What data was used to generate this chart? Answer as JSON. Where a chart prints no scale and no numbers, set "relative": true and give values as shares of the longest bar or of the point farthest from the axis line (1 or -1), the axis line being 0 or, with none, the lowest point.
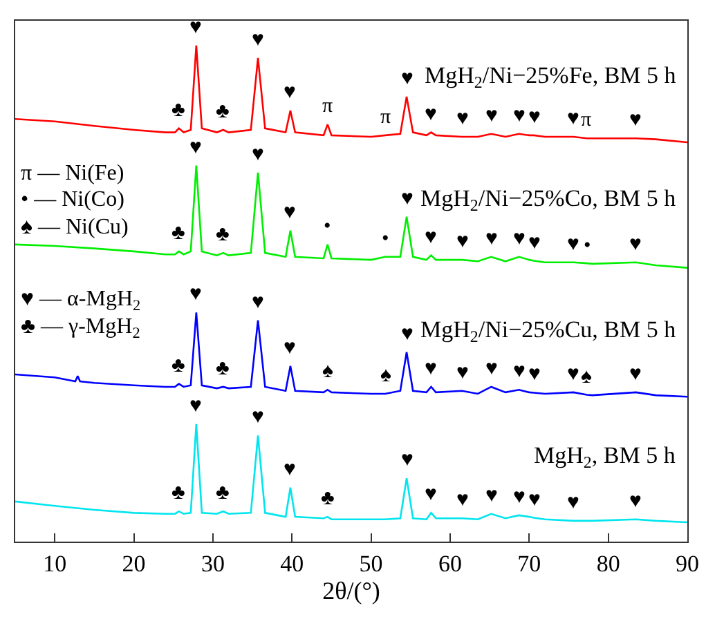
{
  "chart_data": {
    "type": "line",
    "relative": true,
    "xlabel": "2θ/(°)",
    "xlim": [
      5,
      90
    ],
    "xticks": [
      10,
      20,
      30,
      40,
      50,
      60,
      70,
      80,
      90
    ],
    "legend": false,
    "marker": "none",
    "line_style": "solid",
    "x": [
      5,
      10,
      15,
      20,
      24,
      25.2,
      25.7,
      26.3,
      27.2,
      27.9,
      28.6,
      30.5,
      31.3,
      32,
      34.8,
      35.7,
      36.6,
      39.2,
      39.8,
      40.4,
      44,
      44.5,
      45,
      50,
      51.8,
      53.7,
      54.5,
      55.3,
      57,
      57.6,
      58.2,
      61.5,
      63.5,
      65.2,
      67,
      68.7,
      70,
      70.6,
      72,
      75.6,
      77.3,
      78,
      83.5,
      86,
      90
    ],
    "series": [
      {
        "name": "MgH$_{2}$/Ni−25%Fe, BM 5 h",
        "color": "#ff0000",
        "values": [
          0.852,
          0.847,
          0.838,
          0.83,
          0.825,
          0.825,
          0.833,
          0.825,
          0.83,
          1.0,
          0.833,
          0.825,
          0.83,
          0.825,
          0.83,
          0.975,
          0.833,
          0.825,
          0.869,
          0.825,
          0.819,
          0.841,
          0.819,
          0.816,
          0.819,
          0.822,
          0.897,
          0.825,
          0.819,
          0.825,
          0.819,
          0.816,
          0.816,
          0.822,
          0.816,
          0.822,
          0.819,
          0.819,
          0.816,
          0.816,
          0.813,
          0.813,
          0.813,
          0.811,
          0.805
        ]
      },
      {
        "name": "MgH$_{2}$/Ni−25%Co, BM 5 h",
        "color": "#00ee00",
        "values": [
          0.599,
          0.596,
          0.591,
          0.585,
          0.579,
          0.579,
          0.585,
          0.579,
          0.585,
          0.758,
          0.585,
          0.577,
          0.582,
          0.577,
          0.582,
          0.744,
          0.582,
          0.574,
          0.627,
          0.574,
          0.571,
          0.599,
          0.571,
          0.568,
          0.574,
          0.574,
          0.655,
          0.574,
          0.568,
          0.577,
          0.568,
          0.568,
          0.565,
          0.574,
          0.565,
          0.574,
          0.568,
          0.566,
          0.563,
          0.563,
          0.561,
          0.56,
          0.563,
          0.557,
          0.552
        ]
      },
      {
        "name": "MgH$_{2}$/Ni−25%Cu, BM 5 h",
        "color": "#0000ff",
        "x": [
          5,
          10,
          12.6,
          12.9,
          13.2,
          15,
          20,
          24,
          25.2,
          25.7,
          26.3,
          27.2,
          27.9,
          28.6,
          30.5,
          31.3,
          32,
          34.8,
          35.7,
          36.6,
          39.2,
          39.8,
          40.4,
          44,
          44.5,
          45,
          50,
          51.8,
          53.7,
          54.5,
          55.3,
          57,
          57.6,
          58.2,
          61.5,
          63.5,
          65.2,
          67,
          68.7,
          70,
          70.6,
          72,
          75.6,
          77.3,
          78,
          83.5,
          86,
          90
        ],
        "values": [
          0.337,
          0.331,
          0.323,
          0.334,
          0.323,
          0.32,
          0.315,
          0.312,
          0.312,
          0.318,
          0.312,
          0.315,
          0.462,
          0.315,
          0.309,
          0.312,
          0.309,
          0.312,
          0.446,
          0.312,
          0.304,
          0.354,
          0.304,
          0.301,
          0.306,
          0.301,
          0.298,
          0.298,
          0.304,
          0.382,
          0.304,
          0.301,
          0.312,
          0.301,
          0.304,
          0.298,
          0.312,
          0.301,
          0.306,
          0.301,
          0.3,
          0.298,
          0.301,
          0.296,
          0.295,
          0.301,
          0.295,
          0.292
        ]
      },
      {
        "name": "MgH$_{2}$, BM 5 h",
        "color": "#00e5ee",
        "values": [
          0.081,
          0.072,
          0.064,
          0.058,
          0.056,
          0.056,
          0.061,
          0.056,
          0.058,
          0.237,
          0.058,
          0.056,
          0.061,
          0.056,
          0.058,
          0.214,
          0.058,
          0.05,
          0.109,
          0.05,
          0.047,
          0.05,
          0.045,
          0.045,
          0.045,
          0.047,
          0.128,
          0.047,
          0.045,
          0.058,
          0.047,
          0.047,
          0.045,
          0.056,
          0.047,
          0.053,
          0.05,
          0.048,
          0.045,
          0.042,
          0.042,
          0.042,
          0.045,
          0.042,
          0.039
        ]
      }
    ],
    "annotations": [
      "π — Ni(Fe)",
      "• — Ni(Co)",
      "♠ — Ni(Cu)",
      "♥ — α-MgH$_{2}$",
      "♣ — γ-MgH$_{2}$",
      {
        "text": "♣",
        "x": 25.7,
        "y": 0.833
      },
      {
        "text": "♥",
        "x": 27.9,
        "y": 1.0
      },
      {
        "text": "♣",
        "x": 31.3,
        "y": 0.83
      },
      {
        "text": "♥",
        "x": 35.7,
        "y": 0.975
      },
      {
        "text": "♥",
        "x": 39.8,
        "y": 0.869
      },
      {
        "text": "π",
        "x": 44.5,
        "y": 0.841
      },
      {
        "text": "π",
        "x": 51.8,
        "y": 0.819
      },
      {
        "text": "♥",
        "x": 54.5,
        "y": 0.897
      },
      {
        "text": "♥",
        "x": 57.6,
        "y": 0.825
      },
      {
        "text": "♥",
        "x": 61.5,
        "y": 0.816
      },
      {
        "text": "♥",
        "x": 65.2,
        "y": 0.822
      },
      {
        "text": "♥",
        "x": 68.7,
        "y": 0.822
      },
      {
        "text": "♥",
        "x": 70.6,
        "y": 0.819
      },
      {
        "text": "♥",
        "x": 75.6,
        "y": 0.816
      },
      {
        "text": "π",
        "x": 77.3,
        "y": 0.813
      },
      {
        "text": "♥",
        "x": 83.5,
        "y": 0.813
      },
      {
        "text": "♥",
        "x": 27.9,
        "y": 0.758
      },
      {
        "text": "♥",
        "x": 35.7,
        "y": 0.744
      },
      {
        "text": "♣",
        "x": 25.7,
        "y": 0.585
      },
      {
        "text": "♣",
        "x": 31.3,
        "y": 0.582
      },
      {
        "text": "♥",
        "x": 39.8,
        "y": 0.627
      },
      {
        "text": "•",
        "x": 44.5,
        "y": 0.599
      },
      {
        "text": "•",
        "x": 51.8,
        "y": 0.574
      },
      {
        "text": "♥",
        "x": 54.5,
        "y": 0.655
      },
      {
        "text": "♥",
        "x": 57.6,
        "y": 0.577
      },
      {
        "text": "♥",
        "x": 61.5,
        "y": 0.568
      },
      {
        "text": "♥",
        "x": 65.2,
        "y": 0.574
      },
      {
        "text": "♥",
        "x": 68.7,
        "y": 0.574
      },
      {
        "text": "♥",
        "x": 70.6,
        "y": 0.566
      },
      {
        "text": "♥",
        "x": 75.6,
        "y": 0.563
      },
      {
        "text": "•",
        "x": 77.3,
        "y": 0.561
      },
      {
        "text": "♥",
        "x": 83.5,
        "y": 0.563
      },
      {
        "text": "♥",
        "x": 27.9,
        "y": 0.462
      },
      {
        "text": "♥",
        "x": 35.7,
        "y": 0.446
      },
      {
        "text": "♣",
        "x": 25.7,
        "y": 0.318
      },
      {
        "text": "♣",
        "x": 31.3,
        "y": 0.312
      },
      {
        "text": "♥",
        "x": 39.8,
        "y": 0.354
      },
      {
        "text": "♠",
        "x": 44.5,
        "y": 0.306
      },
      {
        "text": "♠",
        "x": 51.8,
        "y": 0.298
      },
      {
        "text": "♥",
        "x": 54.5,
        "y": 0.382
      },
      {
        "text": "♥",
        "x": 57.6,
        "y": 0.312
      },
      {
        "text": "♥",
        "x": 61.5,
        "y": 0.304
      },
      {
        "text": "♥",
        "x": 65.2,
        "y": 0.312
      },
      {
        "text": "♥",
        "x": 68.7,
        "y": 0.306
      },
      {
        "text": "♥",
        "x": 70.6,
        "y": 0.3
      },
      {
        "text": "♥",
        "x": 75.6,
        "y": 0.301
      },
      {
        "text": "♠",
        "x": 77.3,
        "y": 0.296
      },
      {
        "text": "♥",
        "x": 83.5,
        "y": 0.301
      },
      {
        "text": "♥",
        "x": 27.9,
        "y": 0.237
      },
      {
        "text": "♥",
        "x": 35.7,
        "y": 0.214
      },
      {
        "text": "♣",
        "x": 25.7,
        "y": 0.061
      },
      {
        "text": "♣",
        "x": 31.3,
        "y": 0.061
      },
      {
        "text": "♥",
        "x": 39.8,
        "y": 0.109
      },
      {
        "text": "♣",
        "x": 44.5,
        "y": 0.05
      },
      {
        "text": "♥",
        "x": 54.5,
        "y": 0.128
      },
      {
        "text": "♥",
        "x": 57.6,
        "y": 0.058
      },
      {
        "text": "♥",
        "x": 61.5,
        "y": 0.047
      },
      {
        "text": "♥",
        "x": 65.2,
        "y": 0.056
      },
      {
        "text": "♥",
        "x": 68.7,
        "y": 0.053
      },
      {
        "text": "♥",
        "x": 70.6,
        "y": 0.048
      },
      {
        "text": "♥",
        "x": 75.6,
        "y": 0.042
      },
      {
        "text": "♥",
        "x": 83.5,
        "y": 0.045
      }
    ]
  }
}
